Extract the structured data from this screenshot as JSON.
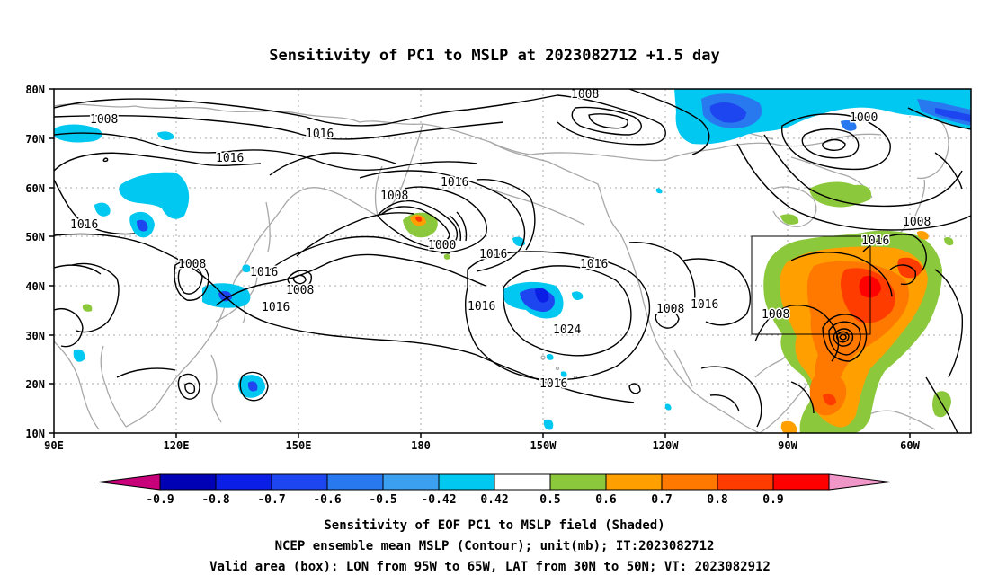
{
  "title": "Sensitivity of PC1 to MSLP at 2023082712 +1.5 day",
  "lat_labels": [
    "80N",
    "70N",
    "60N",
    "50N",
    "40N",
    "30N",
    "20N",
    "10N"
  ],
  "lon_labels": [
    "90E",
    "120E",
    "150E",
    "180",
    "150W",
    "120W",
    "90W",
    "60W"
  ],
  "contour_labels": [
    "1008",
    "1000",
    "1008",
    "1016",
    "1016",
    "1016",
    "1008",
    "1000",
    "1016",
    "1008",
    "1016",
    "1008",
    "1016",
    "1016",
    "1016",
    "1024",
    "1016",
    "1008",
    "1016",
    "1008",
    "1016",
    "1008"
  ],
  "colorbar": {
    "labels": [
      "-0.9",
      "-0.8",
      "-0.7",
      "-0.6",
      "-0.5",
      "-0.42",
      "0.42",
      "0.5",
      "0.6",
      "0.7",
      "0.8",
      "0.9"
    ],
    "colors": [
      "#c8007a",
      "#0000b4",
      "#0a1ee6",
      "#1e46f0",
      "#2878f0",
      "#3ca0f0",
      "#00c8f0",
      "#ffffff",
      "#8cc83c",
      "#ffa000",
      "#ff7800",
      "#ff3c00",
      "#ff0000",
      "#f096c8"
    ]
  },
  "valid_box": {
    "lon_from": "95W",
    "lon_to": "65W",
    "lat_from": "30N",
    "lat_to": "50N"
  },
  "captions": [
    "Sensitivity of EOF PC1 to MSLP field (Shaded)",
    "NCEP ensemble mean MSLP (Contour); unit(mb); IT:2023082712",
    "Valid area (box): LON from 95W to 65W, LAT from 30N to 50N; VT: 2023082912"
  ]
}
